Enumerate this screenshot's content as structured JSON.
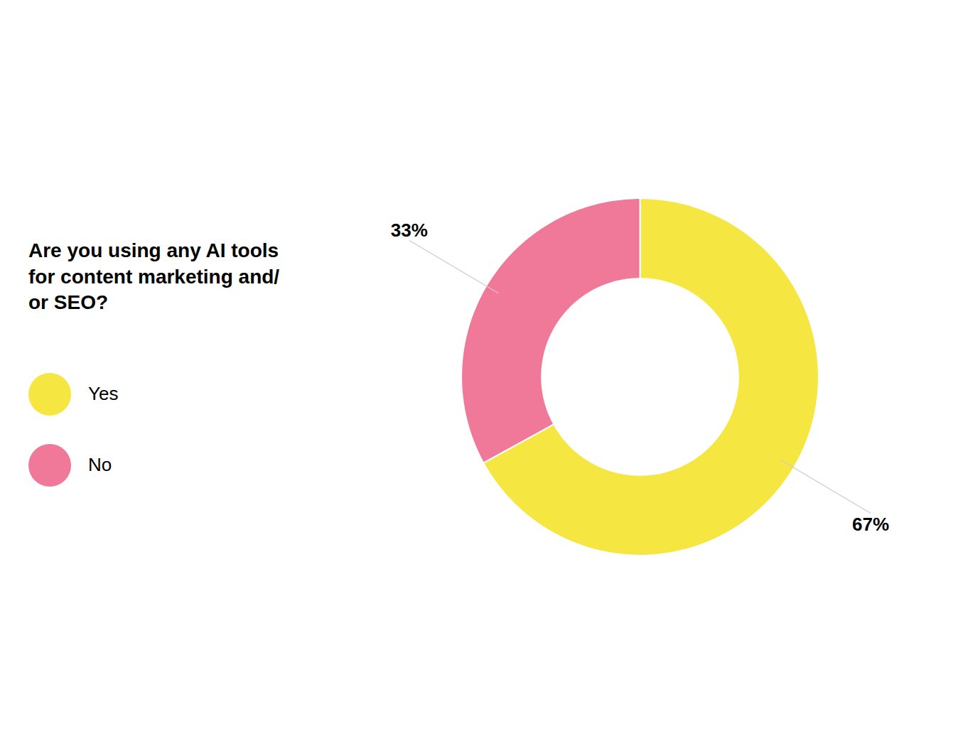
{
  "chart_data": {
    "type": "donut",
    "title": "Are you using any AI tools\nfor content marketing and/\nor SEO?",
    "categories": [
      "Yes",
      "No"
    ],
    "values": [
      67,
      33
    ],
    "value_labels": [
      "67%",
      "33%"
    ],
    "colors": [
      "#F5E642",
      "#F07898"
    ],
    "data_labels": true,
    "legend": "left"
  }
}
